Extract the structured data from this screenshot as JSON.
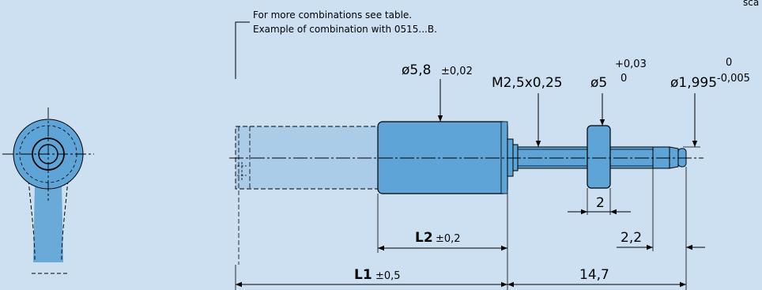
{
  "notes": {
    "line1": "For more combinations see table.",
    "line2": "Example of combination with 0515...B.",
    "corner": "sca"
  },
  "dimensions": {
    "dia_body": "ø5,8",
    "dia_body_tol": "±0,02",
    "thread": "M2,5x0,25",
    "dia_collar": "ø5",
    "dia_collar_tol_upper": "+0,03",
    "dia_collar_tol_lower": "0",
    "dia_shaft": "ø1,995",
    "dia_shaft_tol_upper": "0",
    "dia_shaft_tol_lower": "-0,005",
    "collar_width": "2",
    "groove_dist": "2,2",
    "l2": "L2",
    "l2_tol": "±0,2",
    "l1": "L1",
    "l1_tol": "±0,5",
    "shaft_length": "14,7"
  },
  "colors": {
    "background": "#cde0f1",
    "body": "#5ea4d6",
    "ghost": "#abcce8",
    "line": "#000000"
  }
}
